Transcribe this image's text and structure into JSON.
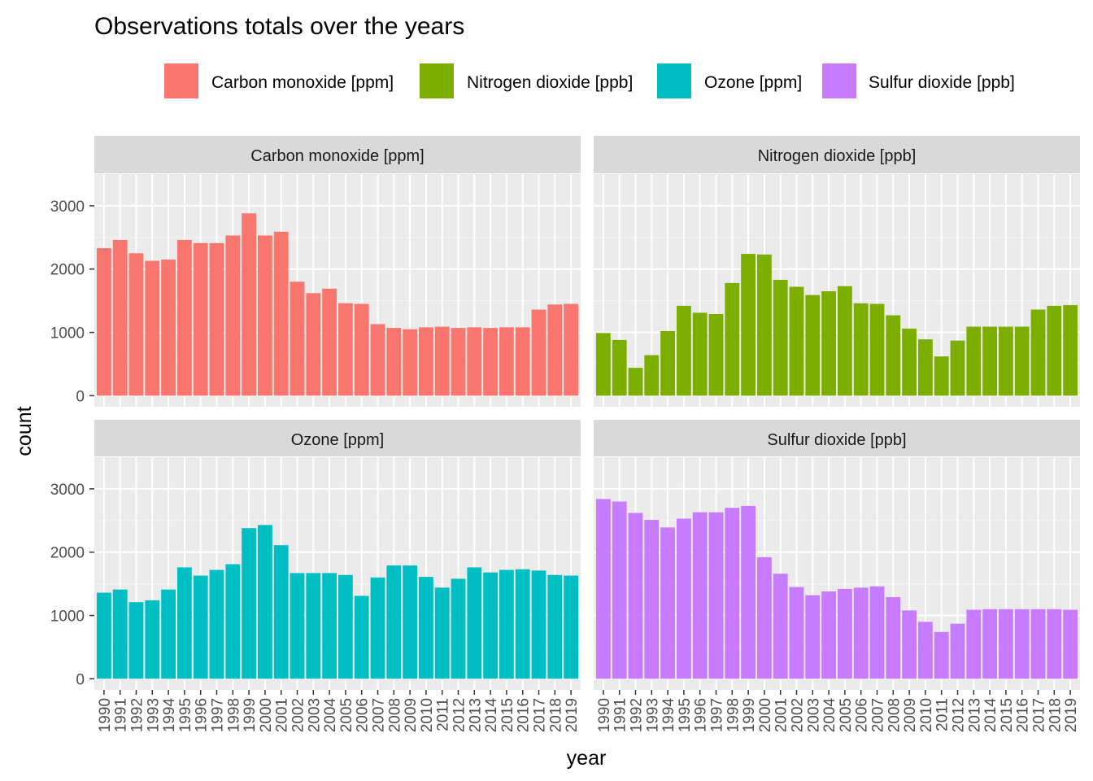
{
  "chart_data": {
    "type": "bar",
    "title": "Observations totals over the years",
    "xlabel": "year",
    "ylabel": "count",
    "ylim": [
      0,
      3500
    ],
    "yticks": [
      0,
      1000,
      2000,
      3000
    ],
    "grid": true,
    "legend_position": "top",
    "categories": [
      "1990",
      "1991",
      "1992",
      "1993",
      "1994",
      "1995",
      "1996",
      "1997",
      "1998",
      "1999",
      "2000",
      "2001",
      "2002",
      "2003",
      "2004",
      "2005",
      "2006",
      "2007",
      "2008",
      "2009",
      "2010",
      "2011",
      "2012",
      "2013",
      "2014",
      "2015",
      "2016",
      "2017",
      "2018",
      "2019"
    ],
    "series": [
      {
        "name": "Carbon monoxide [ppm]",
        "color": "#F8766D",
        "values": [
          2330,
          2460,
          2250,
          2130,
          2150,
          2460,
          2410,
          2410,
          2530,
          2880,
          2530,
          2590,
          1800,
          1620,
          1690,
          1460,
          1450,
          1130,
          1070,
          1050,
          1080,
          1090,
          1070,
          1080,
          1070,
          1080,
          1080,
          1360,
          1440,
          1450
        ]
      },
      {
        "name": "Nitrogen dioxide [ppb]",
        "color": "#7CAE00",
        "values": [
          990,
          880,
          440,
          640,
          1020,
          1420,
          1310,
          1290,
          1780,
          2240,
          2230,
          1830,
          1720,
          1590,
          1650,
          1730,
          1460,
          1450,
          1270,
          1060,
          890,
          620,
          870,
          1090,
          1090,
          1090,
          1090,
          1360,
          1420,
          1430
        ]
      },
      {
        "name": "Ozone [ppm]",
        "color": "#00BFC4",
        "values": [
          1360,
          1410,
          1210,
          1240,
          1410,
          1760,
          1630,
          1720,
          1810,
          2380,
          2430,
          2110,
          1670,
          1670,
          1670,
          1640,
          1310,
          1600,
          1790,
          1790,
          1610,
          1440,
          1580,
          1760,
          1680,
          1720,
          1730,
          1710,
          1640,
          1630
        ]
      },
      {
        "name": "Sulfur dioxide [ppb]",
        "color": "#C77CFF",
        "values": [
          2840,
          2800,
          2620,
          2510,
          2390,
          2530,
          2630,
          2630,
          2700,
          2730,
          1920,
          1660,
          1450,
          1320,
          1380,
          1420,
          1440,
          1460,
          1290,
          1080,
          900,
          740,
          870,
          1090,
          1100,
          1100,
          1100,
          1100,
          1100,
          1090
        ]
      }
    ]
  }
}
